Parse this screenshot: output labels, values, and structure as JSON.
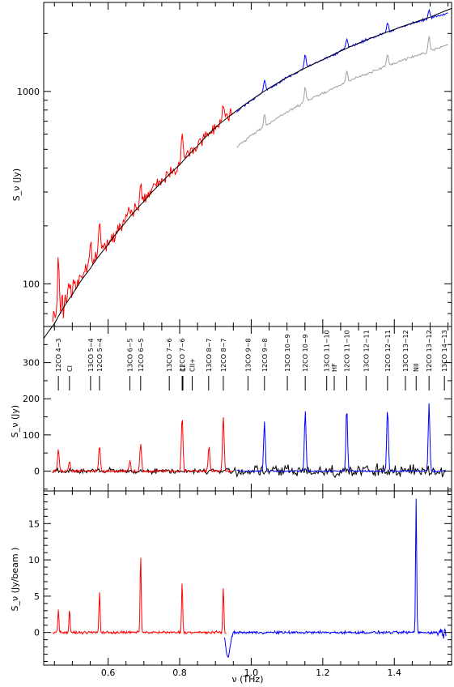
{
  "figure": {
    "xlabel": "ν (THz)",
    "x_ticks": [
      "0.6",
      "0.8",
      "1.0",
      "1.2",
      "1.4"
    ]
  },
  "chart_data": [
    {
      "type": "line",
      "ylabel": "S_ν (Jy)",
      "yscale": "log",
      "xlim": [
        0.42,
        1.56
      ],
      "ylim": [
        60,
        2900
      ],
      "y_ticks": [
        "100",
        "1000"
      ],
      "colors": {
        "red": "#ff0000",
        "blue": "#0000ff",
        "gray": "#a0a0a0",
        "model": "#000000"
      },
      "series": [
        {
          "color": "red",
          "x": [
            0.445,
            0.47,
            0.5,
            0.55,
            0.6,
            0.65,
            0.7,
            0.75,
            0.8,
            0.85,
            0.9,
            0.95
          ],
          "y": [
            64,
            75,
            95,
            125,
            165,
            215,
            275,
            345,
            420,
            530,
            660,
            780
          ],
          "peaks": [
            [
              0.461,
              132
            ],
            [
              0.492,
              103
            ],
            [
              0.551,
              160
            ],
            [
              0.576,
              210
            ],
            [
              0.661,
              245
            ],
            [
              0.691,
              318
            ],
            [
              0.771,
              380
            ],
            [
              0.807,
              585
            ],
            [
              0.882,
              600
            ],
            [
              0.922,
              860
            ]
          ]
        },
        {
          "color": "blue",
          "x": [
            0.96,
            1.0,
            1.05,
            1.1,
            1.15,
            1.2,
            1.25,
            1.3,
            1.35,
            1.4,
            1.45,
            1.5,
            1.55
          ],
          "y": [
            790,
            900,
            1030,
            1180,
            1320,
            1460,
            1620,
            1780,
            1940,
            2100,
            2250,
            2400,
            2550
          ],
          "peaks": [
            [
              1.037,
              1150
            ],
            [
              1.151,
              1560
            ],
            [
              1.267,
              1870
            ],
            [
              1.381,
              2280
            ],
            [
              1.497,
              2680
            ]
          ]
        },
        {
          "color": "gray",
          "x": [
            0.96,
            1.0,
            1.05,
            1.1,
            1.15,
            1.2,
            1.25,
            1.3,
            1.35,
            1.4,
            1.45,
            1.5,
            1.55
          ],
          "y": [
            510,
            590,
            680,
            780,
            880,
            980,
            1080,
            1190,
            1290,
            1400,
            1510,
            1620,
            1760
          ],
          "peaks": [
            [
              1.037,
              760
            ],
            [
              1.151,
              1050
            ],
            [
              1.267,
              1280
            ],
            [
              1.381,
              1560
            ],
            [
              1.497,
              1930
            ]
          ]
        },
        {
          "color": "model",
          "x": [
            0.42,
            0.45,
            0.5,
            0.55,
            0.6,
            0.65,
            0.7,
            0.75,
            0.8,
            0.85,
            0.9,
            0.95,
            1.0,
            1.1,
            1.2,
            1.3,
            1.4,
            1.5,
            1.56
          ],
          "y": [
            52,
            62,
            88,
            120,
            160,
            210,
            268,
            338,
            415,
            520,
            650,
            770,
            900,
            1180,
            1460,
            1780,
            2100,
            2430,
            2700
          ]
        }
      ]
    },
    {
      "type": "line",
      "ylabel": "S_ν (Jy)",
      "xlim": [
        0.42,
        1.56
      ],
      "ylim": [
        -55,
        400
      ],
      "y_ticks": [
        "0",
        "100",
        "200",
        "300"
      ],
      "colors": {
        "red": "#ff0000",
        "blue": "#0000ff",
        "model": "#000000"
      },
      "peaks": [
        {
          "x": 0.461,
          "y": 62,
          "color": "red"
        },
        {
          "x": 0.492,
          "y": 28,
          "color": "red"
        },
        {
          "x": 0.576,
          "y": 70,
          "color": "red"
        },
        {
          "x": 0.661,
          "y": 30,
          "color": "red"
        },
        {
          "x": 0.691,
          "y": 78,
          "color": "red"
        },
        {
          "x": 0.807,
          "y": 153,
          "color": "red"
        },
        {
          "x": 0.882,
          "y": 68,
          "color": "red"
        },
        {
          "x": 0.922,
          "y": 153,
          "color": "red"
        },
        {
          "x": 1.037,
          "y": 137,
          "color": "blue"
        },
        {
          "x": 1.151,
          "y": 167,
          "color": "blue"
        },
        {
          "x": 1.267,
          "y": 175,
          "color": "blue"
        },
        {
          "x": 1.381,
          "y": 175,
          "color": "blue"
        },
        {
          "x": 1.497,
          "y": 187,
          "color": "blue"
        }
      ],
      "line_ids": [
        {
          "label": "12CO 4−3",
          "x": 0.461
        },
        {
          "label": "CI",
          "x": 0.492
        },
        {
          "label": "13CO 5−4",
          "x": 0.551
        },
        {
          "label": "12CO 5−4",
          "x": 0.576
        },
        {
          "label": "13CO 6−5",
          "x": 0.661
        },
        {
          "label": "12CO 6−5",
          "x": 0.691
        },
        {
          "label": "13CO 7−6",
          "x": 0.771
        },
        {
          "label": "12CO 7−6",
          "x": 0.807
        },
        {
          "label": "CI",
          "x": 0.809
        },
        {
          "label": "CII+",
          "x": 0.835
        },
        {
          "label": "13CO 8−7",
          "x": 0.881
        },
        {
          "label": "12CO 8−7",
          "x": 0.922
        },
        {
          "label": "13CO 9−8",
          "x": 0.991
        },
        {
          "label": "12CO 9−8",
          "x": 1.037
        },
        {
          "label": "13CO 10−9",
          "x": 1.101
        },
        {
          "label": "12CO 10−9",
          "x": 1.151
        },
        {
          "label": "13CO 11−10",
          "x": 1.211
        },
        {
          "label": "HF",
          "x": 1.232
        },
        {
          "label": "12CO 11−10",
          "x": 1.267
        },
        {
          "label": "13CO 12−11",
          "x": 1.321
        },
        {
          "label": "12CO 12−11",
          "x": 1.381
        },
        {
          "label": "13CO 13−12",
          "x": 1.431
        },
        {
          "label": "NII",
          "x": 1.461
        },
        {
          "label": "12CO 13−12",
          "x": 1.497
        },
        {
          "label": "13CO 14−13",
          "x": 1.54
        }
      ]
    },
    {
      "type": "line",
      "ylabel": "S_ν (Jy/beam )",
      "xlim": [
        0.42,
        1.56
      ],
      "ylim": [
        -4.5,
        19.5
      ],
      "y_ticks": [
        "0",
        "5",
        "10",
        "15"
      ],
      "colors": {
        "red": "#ff0000",
        "blue": "#0000ff"
      },
      "peaks": [
        {
          "x": 0.461,
          "y": 3.3,
          "color": "red"
        },
        {
          "x": 0.492,
          "y": 3.0,
          "color": "red"
        },
        {
          "x": 0.576,
          "y": 5.5,
          "color": "red"
        },
        {
          "x": 0.691,
          "y": 10.7,
          "color": "red"
        },
        {
          "x": 0.807,
          "y": 7.0,
          "color": "red"
        },
        {
          "x": 0.922,
          "y": 6.2,
          "color": "red"
        },
        {
          "x": 1.461,
          "y": 18.3,
          "color": "blue"
        }
      ],
      "dip": {
        "x": 0.935,
        "y": -3.5
      }
    }
  ]
}
